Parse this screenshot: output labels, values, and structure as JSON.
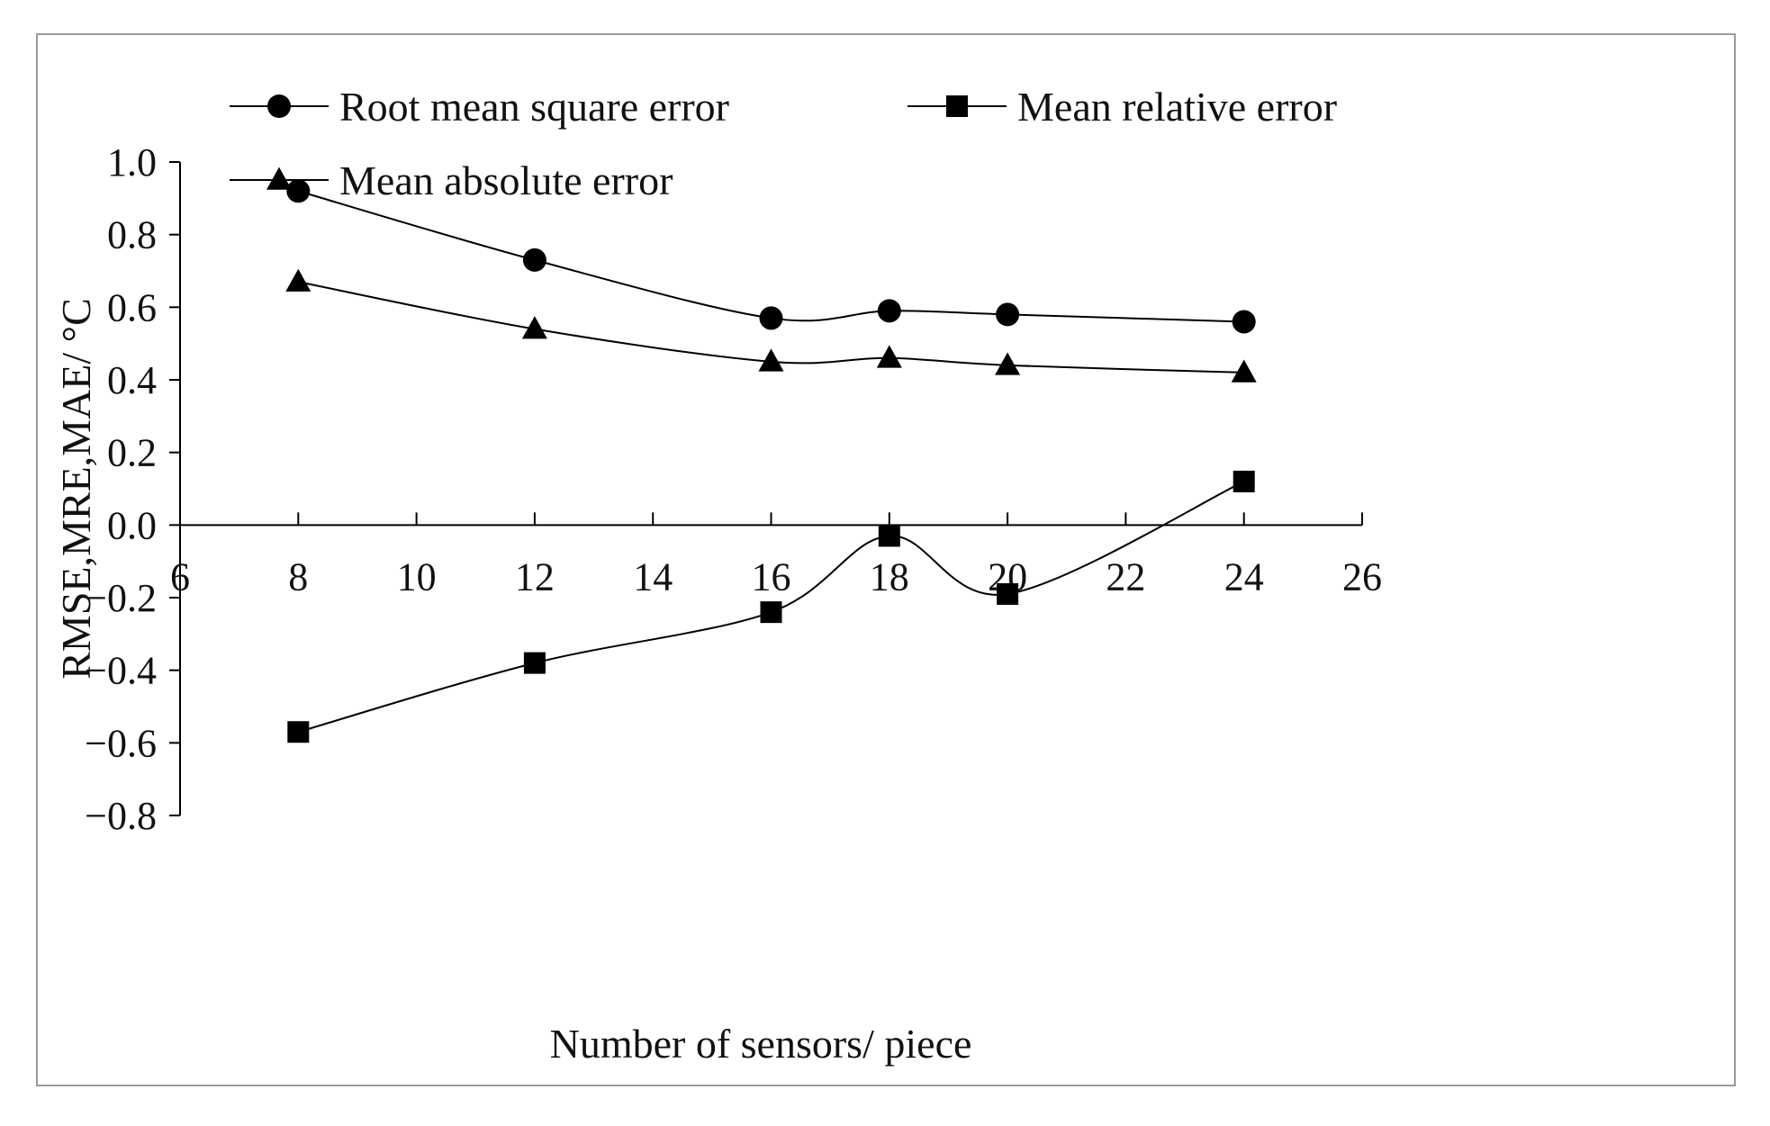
{
  "chart_data": {
    "type": "line",
    "title": "",
    "xlabel": "Number of sensors/ piece",
    "ylabel": "RMSE,MRE,MAE/ °C",
    "xlim": [
      6,
      26
    ],
    "ylim": [
      -0.8,
      1.0
    ],
    "x_ticks": [
      "6",
      "8",
      "10",
      "12",
      "14",
      "16",
      "18",
      "20",
      "22",
      "24",
      "26"
    ],
    "y_ticks": [
      "1.0",
      "0.8",
      "0.6",
      "0.4",
      "0.2",
      "0.0",
      "−0.2",
      "−0.4",
      "−0.6",
      "−0.8"
    ],
    "x": [
      8,
      12,
      16,
      18,
      20,
      24
    ],
    "series": [
      {
        "name": "Root mean square error",
        "marker": "circle",
        "values": [
          0.92,
          0.73,
          0.57,
          0.59,
          0.58,
          0.56
        ]
      },
      {
        "name": "Mean relative error",
        "marker": "square",
        "values": [
          -0.57,
          -0.38,
          -0.24,
          -0.03,
          -0.19,
          0.12
        ]
      },
      {
        "name": "Mean absolute error",
        "marker": "triangle",
        "values": [
          0.67,
          0.54,
          0.45,
          0.46,
          0.44,
          0.42
        ]
      }
    ],
    "grid": false,
    "legend_position": "top",
    "line_color": "#000000"
  }
}
